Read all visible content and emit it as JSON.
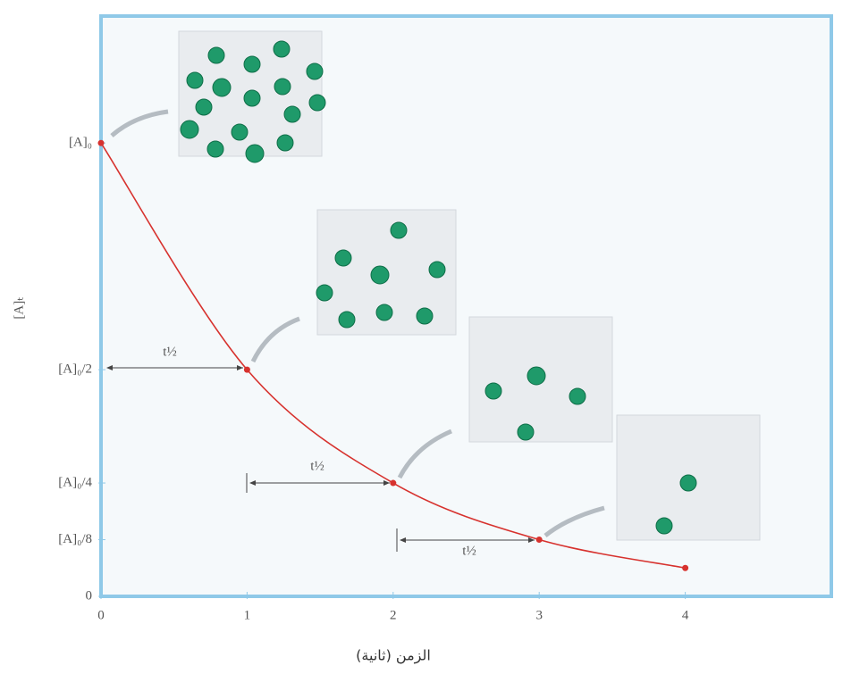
{
  "chart_data": {
    "type": "line",
    "x_label": "الزمن (ثانية)",
    "y_label": "[A]ₜ",
    "x": [
      0,
      1,
      2,
      3,
      4
    ],
    "series": [
      {
        "color": "#d7322e",
        "values": [
          1,
          0.5,
          0.25,
          0.125,
          0.0625
        ]
      }
    ],
    "xlim": [
      0,
      5
    ],
    "xticks": [
      0,
      1,
      2,
      3,
      4
    ],
    "ylim": [
      0,
      1.28
    ],
    "yticks": [
      0,
      {
        "value": 0.125,
        "label": "[A]₀/8"
      },
      {
        "value": 0.25,
        "label": "[A]₀/4"
      },
      {
        "value": 0.5,
        "label": "[A]₀/2"
      },
      {
        "value": 1,
        "label": "[A]₀"
      }
    ],
    "annotations": [
      "t½",
      "t½",
      "t½"
    ]
  }
}
